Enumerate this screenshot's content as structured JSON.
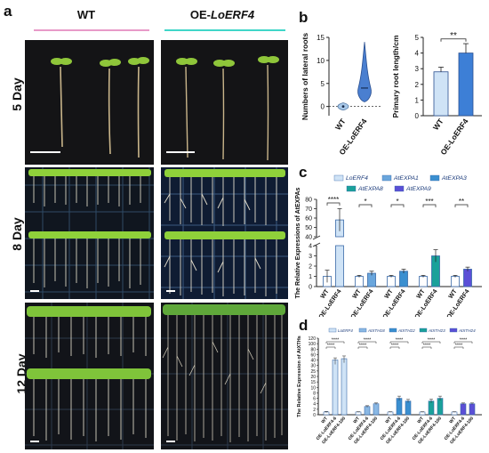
{
  "panel_a": {
    "letter": "a",
    "col_wt": "WT",
    "col_oe_prefix": "OE-",
    "col_oe_gene": "LoERF4",
    "rows": [
      "5 Day",
      "8 Day",
      "12 Day"
    ],
    "colors": {
      "wt_line": "#e89ac8",
      "oe_line": "#3fd6c8"
    }
  },
  "chart_data": [
    {
      "id": "b-left",
      "letter": "b",
      "type": "violin",
      "ylabel": "Numbers of lateral roots",
      "categories": [
        "WT",
        "OE-LoERF4"
      ],
      "values": [
        0,
        4
      ],
      "ylim": [
        -2,
        15
      ],
      "yticks": [
        0,
        5,
        10,
        15
      ],
      "colors": [
        "#a8c8e8",
        "#4a7fd0"
      ]
    },
    {
      "id": "b-right",
      "type": "bar",
      "ylabel": "Primary root length/cm",
      "categories": [
        "WT",
        "OE-LoERF4"
      ],
      "values": [
        2.8,
        4.0
      ],
      "errors": [
        0.3,
        0.6
      ],
      "ylim": [
        0,
        5
      ],
      "yticks": [
        0,
        1,
        2,
        3,
        4,
        5
      ],
      "significance": "**",
      "colors": [
        "#cfe3f6",
        "#3d7fd6"
      ]
    },
    {
      "id": "c",
      "letter": "c",
      "type": "bar",
      "ylabel": "The Relative Expressions of AtEXPAs",
      "legend": [
        "LoERF4",
        "AtEXPA1",
        "AtEXPA3",
        "AtEXPA8",
        "AtEXPA9"
      ],
      "legend_colors": [
        "#cfe3f6",
        "#6aa6dc",
        "#3a8fd0",
        "#1aa19a",
        "#5b4fd6"
      ],
      "groups": [
        {
          "labels": [
            "WT",
            "OE-LoERF4"
          ],
          "values": [
            1.0,
            58
          ],
          "errors": [
            0.6,
            12
          ],
          "sig": "****"
        },
        {
          "labels": [
            "WT",
            "OE-LoERF4"
          ],
          "values": [
            1.0,
            1.3
          ],
          "errors": [
            0.1,
            0.2
          ],
          "sig": "*"
        },
        {
          "labels": [
            "WT",
            "OE-LoERF4"
          ],
          "values": [
            1.0,
            1.5
          ],
          "errors": [
            0.1,
            0.2
          ],
          "sig": "*"
        },
        {
          "labels": [
            "WT",
            "OE-LoERF4"
          ],
          "values": [
            1.0,
            3.0
          ],
          "errors": [
            0.1,
            0.6
          ],
          "sig": "***"
        },
        {
          "labels": [
            "WT",
            "OE-LoERF4"
          ],
          "values": [
            1.0,
            1.7
          ],
          "errors": [
            0.1,
            0.2
          ],
          "sig": "**"
        }
      ],
      "yticks_top": [
        40,
        50,
        60,
        70,
        80
      ],
      "yticks_bottom": [
        0,
        1,
        2,
        3,
        4
      ]
    },
    {
      "id": "d",
      "letter": "d",
      "type": "bar",
      "ylabel": "The Relative Expression of AtXTHs",
      "legend": [
        "LoERF4",
        "AtXTH18",
        "AtXTH22",
        "AtXTH23",
        "AtXTH24"
      ],
      "legend_colors": [
        "#cfe3f6",
        "#8ab8e4",
        "#3a8fd0",
        "#1aa19a",
        "#5b4fd6"
      ],
      "groups": [
        {
          "labels": [
            "WT",
            "OE-LoERF4-6",
            "OE-LoERF4-100"
          ],
          "values": [
            1,
            40,
            45
          ],
          "errors": [
            0.2,
            8,
            10
          ],
          "sig": "****"
        },
        {
          "labels": [
            "WT",
            "OE-LoERF4-6",
            "OE-LoERF4-100"
          ],
          "values": [
            1,
            3,
            4
          ],
          "errors": [
            0.1,
            0.3,
            0.3
          ],
          "sig": "****"
        },
        {
          "labels": [
            "WT",
            "OE-LoERF4-6",
            "OE-LoERF4-100"
          ],
          "values": [
            1,
            6,
            5
          ],
          "errors": [
            0.1,
            0.8,
            0.6
          ],
          "sig": "****"
        },
        {
          "labels": [
            "WT",
            "OE-LoERF4-6",
            "OE-LoERF4-100"
          ],
          "values": [
            1,
            5,
            6
          ],
          "errors": [
            0.1,
            0.7,
            0.8
          ],
          "sig": "****"
        },
        {
          "labels": [
            "WT",
            "OE-LoERF4-6",
            "OE-LoERF4-100"
          ],
          "values": [
            1,
            4,
            4
          ],
          "errors": [
            0.1,
            0.3,
            0.3
          ],
          "sig": "****"
        }
      ],
      "yticks": [
        "0",
        "2",
        "4",
        "6",
        "8",
        "10",
        "15",
        "20",
        "25",
        "30",
        "40",
        "60",
        "80",
        "100",
        "120"
      ]
    }
  ]
}
